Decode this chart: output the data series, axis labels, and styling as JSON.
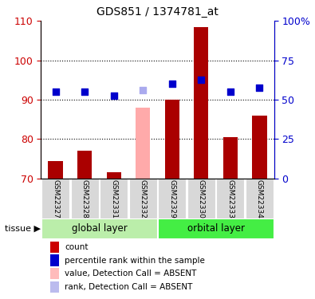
{
  "title": "GDS851 / 1374781_at",
  "categories": [
    "GSM22327",
    "GSM22328",
    "GSM22331",
    "GSM22332",
    "GSM22329",
    "GSM22330",
    "GSM22333",
    "GSM22334"
  ],
  "bar_values": [
    74.5,
    77.0,
    71.5,
    88.0,
    90.0,
    108.5,
    80.5,
    86.0
  ],
  "bar_absent": [
    false,
    false,
    false,
    true,
    false,
    false,
    false,
    false
  ],
  "bar_color_normal": "#aa0000",
  "bar_color_absent": "#ffaaaa",
  "dot_values_left_scale": [
    92.0,
    92.0,
    91.0,
    92.5,
    94.0,
    95.0,
    92.0,
    93.0
  ],
  "dot_absent": [
    false,
    false,
    false,
    true,
    false,
    false,
    false,
    false
  ],
  "dot_color_normal": "#0000cc",
  "dot_color_absent": "#aaaaee",
  "ylim_left": [
    70,
    110
  ],
  "ylim_right": [
    0,
    100
  ],
  "yticks_left": [
    70,
    80,
    90,
    100,
    110
  ],
  "yticks_right": [
    0,
    25,
    50,
    75,
    100
  ],
  "ytick_labels_right": [
    "0",
    "25",
    "50",
    "75",
    "100%"
  ],
  "groups": [
    {
      "label": "global layer",
      "start": 0,
      "end": 3,
      "color": "#bbeeaa"
    },
    {
      "label": "orbital layer",
      "start": 4,
      "end": 7,
      "color": "#44dd44"
    }
  ],
  "tissue_label": "tissue",
  "legend_items": [
    {
      "label": "count",
      "color": "#cc0000"
    },
    {
      "label": "percentile rank within the sample",
      "color": "#0000cc"
    },
    {
      "label": "value, Detection Call = ABSENT",
      "color": "#ffbbbb"
    },
    {
      "label": "rank, Detection Call = ABSENT",
      "color": "#bbbbee"
    }
  ],
  "bar_width": 0.5,
  "dot_size": 28,
  "axis_label_color_left": "#cc0000",
  "axis_label_color_right": "#0000cc"
}
